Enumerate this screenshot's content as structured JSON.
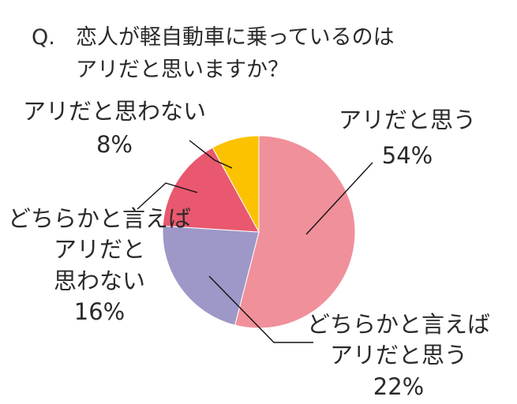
{
  "question": {
    "prefix": "Q.",
    "line1": "恋人が軽自動車に乗っているのは",
    "line2": "アリだと思いますか？"
  },
  "chart_data": {
    "type": "pie",
    "start_angle_deg": 0,
    "direction": "clockwise",
    "slices": [
      {
        "label_lines": [
          "アリだと思う"
        ],
        "value": 54,
        "value_label": "54%",
        "color": "#f0909a"
      },
      {
        "label_lines": [
          "どちらかと言えば",
          "アリだと思う"
        ],
        "value": 22,
        "value_label": "22%",
        "color": "#9e98c8"
      },
      {
        "label_lines": [
          "どちらかと言えば",
          "アリだと",
          "思わない"
        ],
        "value": 16,
        "value_label": "16%",
        "color": "#e9586e"
      },
      {
        "label_lines": [
          "アリだと思わない"
        ],
        "value": 8,
        "value_label": "8%",
        "color": "#fcc200"
      }
    ]
  }
}
